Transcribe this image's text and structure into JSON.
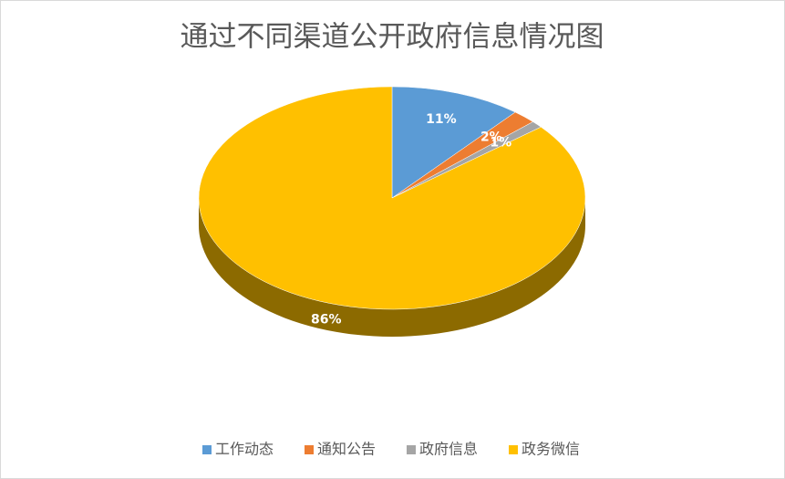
{
  "chart_data": {
    "type": "pie3d",
    "title": "通过不同渠道公开政府信息情况图",
    "categories": [
      "工作动态",
      "通知公告",
      "政府信息",
      "政务微信"
    ],
    "values": [
      11,
      2,
      1,
      86
    ],
    "value_labels": [
      "11%",
      "2%",
      "1%",
      "86%"
    ],
    "colors": [
      "#5b9bd5",
      "#ed7d31",
      "#a5a5a5",
      "#ffc000"
    ],
    "legend": "bottom"
  }
}
